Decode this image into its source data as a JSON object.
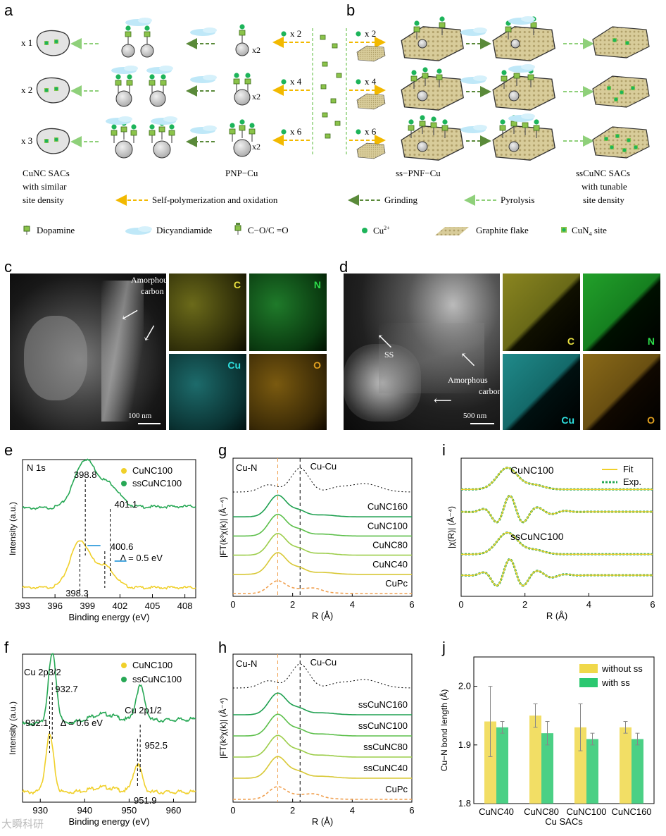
{
  "panels": {
    "a": "a",
    "b": "b",
    "c": "c",
    "d": "d",
    "e": "e",
    "f": "f",
    "g": "g",
    "h": "h",
    "i": "i",
    "j": "j"
  },
  "scheme": {
    "rows_left": [
      "x 1",
      "x 2",
      "x 3"
    ],
    "monomer_mult": [
      "x 2",
      "x 4",
      "x 6"
    ],
    "monomer_mult_b": [
      "x 2",
      "x 4",
      "x 6"
    ],
    "pnp_x2": "x2",
    "captions": {
      "cunc_l1": "CuNC SACs",
      "cunc_l2": "with similar",
      "cunc_l3": "site density",
      "pnp": "PNP−Cu",
      "sspnf": "ss−PNF−Cu",
      "sscunc_l1": "ssCuNC SACs",
      "sscunc_l2": "with tunable",
      "sscunc_l3": "site density"
    },
    "legend_arrows": [
      "Self-polymerization and oxidation",
      "Grinding",
      "Pyrolysis"
    ],
    "legend_items": [
      "Dopamine",
      "Dicyandiamide",
      "C−O/C =O",
      "Cu",
      "Graphite flake",
      "CuN",
      "site"
    ],
    "cu_sup": "2+",
    "cun4_sub": "4",
    "colors": {
      "yellow_arrow": "#f2b900",
      "dark_green_arrow": "#5a8a3a",
      "light_green_arrow": "#8fd07a",
      "cu_dot": "#1db45a",
      "ligand": "#8bc34a",
      "cloud": "#bfe8f8",
      "flake": "#cdbf8a"
    }
  },
  "micro_c": {
    "label_amorphous_1": "Amorphous",
    "label_amorphous_2": "carbon",
    "scale": "100 nm",
    "eds": [
      "C",
      "N",
      "Cu",
      "O"
    ]
  },
  "micro_d": {
    "label_ss": "SS",
    "label_amorphous_1": "Amorphous",
    "label_amorphous_2": "carbon",
    "scale": "500 nm",
    "eds": [
      "C",
      "N",
      "Cu",
      "O"
    ]
  },
  "chart_data": [
    {
      "panel": "e",
      "type": "line",
      "title": "N 1s",
      "xlabel": "Binding energy (eV)",
      "ylabel": "Intensity (a.u.)",
      "xlim": [
        393,
        409
      ],
      "xticks": [
        393,
        396,
        399,
        402,
        405,
        408
      ],
      "series": [
        {
          "name": "CuNC100",
          "color": "#f0d02a",
          "peaks": [
            398.3,
            400.6
          ]
        },
        {
          "name": "ssCuNC100",
          "color": "#27a855",
          "peaks": [
            398.8,
            401.1
          ]
        }
      ],
      "annotations": [
        "398.8",
        "401.1",
        "Δ = 0.5 eV",
        "398.3",
        "400.6"
      ]
    },
    {
      "panel": "f",
      "type": "line",
      "xlabel": "Binding energy (eV)",
      "ylabel": "Intensity (a.u.)",
      "xlim": [
        926,
        965
      ],
      "xticks": [
        930,
        940,
        950,
        960
      ],
      "series": [
        {
          "name": "CuNC100",
          "color": "#f0d02a",
          "peaks": [
            932.1,
            951.9
          ]
        },
        {
          "name": "ssCuNC100",
          "color": "#27a855",
          "peaks": [
            932.7,
            952.5
          ]
        }
      ],
      "annotations": [
        "Cu 2p3/2",
        "932.7",
        "932.1",
        "Δ = 0.6 eV",
        "Cu 2p1/2",
        "952.5",
        "951.9"
      ]
    },
    {
      "panel": "g",
      "type": "line",
      "xlabel": "R (Å)",
      "ylabel": "|FT(k³χ(k)| (Å⁻⁴)",
      "xlim": [
        0,
        6
      ],
      "xticks": [
        0,
        2,
        4,
        6
      ],
      "series": [
        "CuNC160",
        "CuNC100",
        "CuNC80",
        "CuNC40",
        "CuPc"
      ],
      "refs": [
        "Cu-N",
        "Cu-Cu"
      ]
    },
    {
      "panel": "h",
      "type": "line",
      "xlabel": "R (Å)",
      "ylabel": "|FT(k³χ(k)| (Å⁻⁴)",
      "xlim": [
        0,
        6
      ],
      "xticks": [
        0,
        2,
        4,
        6
      ],
      "series": [
        "ssCuNC160",
        "ssCuNC100",
        "ssCuNC80",
        "ssCuNC40",
        "CuPc"
      ],
      "refs": [
        "Cu-N",
        "Cu-Cu"
      ]
    },
    {
      "panel": "i",
      "type": "line",
      "xlabel": "R (Å)",
      "ylabel": "|χ(R)| (Å⁻⁴)",
      "xlim": [
        0,
        6
      ],
      "xticks": [
        0,
        2,
        4,
        6
      ],
      "series": [
        {
          "name": "Fit",
          "color": "#f0d02a"
        },
        {
          "name": "Exp.",
          "color": "#27a855"
        }
      ],
      "labels": [
        "CuNC100",
        "ssCuNC100"
      ]
    },
    {
      "panel": "j",
      "type": "bar",
      "xlabel": "Cu SACs",
      "ylabel": "Cu−N bond length (Å)",
      "ylim": [
        1.8,
        2.05
      ],
      "yticks": [
        1.8,
        1.9,
        2.0
      ],
      "categories": [
        "CuNC40",
        "CuNC80",
        "CuNC100",
        "CuNC160"
      ],
      "series": [
        {
          "name": "without ss",
          "color": "#f0d84a",
          "values": [
            1.94,
            1.95,
            1.93,
            1.93
          ],
          "errors": [
            0.06,
            0.02,
            0.04,
            0.01
          ]
        },
        {
          "name": "with ss",
          "color": "#2bc870",
          "values": [
            1.93,
            1.92,
            1.91,
            1.91
          ],
          "errors": [
            0.01,
            0.02,
            0.01,
            0.01
          ]
        }
      ]
    }
  ],
  "watermark": "大瞬科研"
}
